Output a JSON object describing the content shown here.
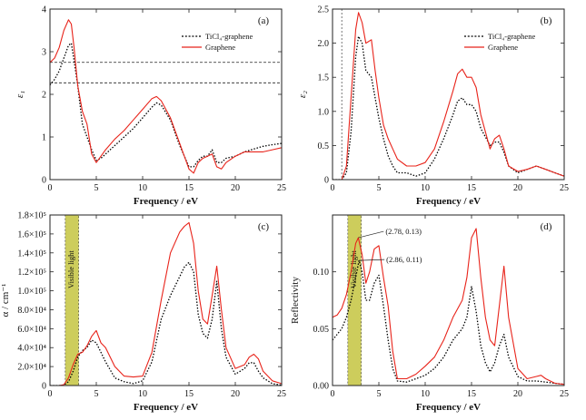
{
  "chart_data": [
    {
      "panel": "(a)",
      "type": "line",
      "xlabel": "Frequency / eV",
      "ylabel": "ε₁",
      "xlim": [
        0,
        25
      ],
      "ylim": [
        0,
        4
      ],
      "xticks": [
        0,
        5,
        10,
        15,
        20,
        25
      ],
      "yticks": [
        0,
        1,
        2,
        3,
        4
      ],
      "xtick_labels": [
        "0",
        "5",
        "10",
        "15",
        "20",
        "25"
      ],
      "ytick_labels": [
        "0",
        "1",
        "2",
        "3",
        "4"
      ],
      "legend_position": "top-right",
      "hlines": [
        2.75,
        2.27
      ],
      "series": [
        {
          "name": "TiCl₄-graphene",
          "color": "#000000",
          "style": "dotted",
          "x": [
            0,
            0.5,
            1,
            1.5,
            2,
            2.3,
            2.6,
            3,
            3.5,
            4,
            4.5,
            5,
            5.5,
            6,
            7,
            8,
            9,
            10,
            11,
            11.5,
            12,
            13,
            14,
            15,
            15.5,
            16,
            16.5,
            17,
            17.5,
            18,
            18.5,
            19,
            20,
            21,
            22,
            23,
            24,
            25
          ],
          "values": [
            2.22,
            2.35,
            2.55,
            2.85,
            3.15,
            3.2,
            2.8,
            2.2,
            1.3,
            1.0,
            0.7,
            0.45,
            0.5,
            0.6,
            0.8,
            1.0,
            1.2,
            1.45,
            1.7,
            1.8,
            1.75,
            1.4,
            0.8,
            0.3,
            0.3,
            0.45,
            0.55,
            0.55,
            0.7,
            0.4,
            0.4,
            0.5,
            0.55,
            0.65,
            0.72,
            0.78,
            0.82,
            0.85
          ]
        },
        {
          "name": "Graphene",
          "color": "#e8231a",
          "style": "solid",
          "x": [
            0,
            0.5,
            1,
            1.5,
            2,
            2.3,
            2.6,
            3,
            3.5,
            4,
            4.5,
            5,
            5.5,
            6,
            7,
            8,
            9,
            10,
            11,
            11.5,
            12,
            13,
            14,
            15,
            15.5,
            16,
            16.5,
            17,
            17.5,
            18,
            18.5,
            19,
            20,
            21,
            22,
            23,
            24,
            25
          ],
          "values": [
            2.75,
            2.85,
            3.1,
            3.5,
            3.75,
            3.65,
            3.1,
            2.2,
            1.6,
            1.3,
            0.6,
            0.4,
            0.55,
            0.7,
            0.95,
            1.15,
            1.4,
            1.65,
            1.9,
            1.95,
            1.85,
            1.45,
            0.85,
            0.25,
            0.15,
            0.4,
            0.5,
            0.55,
            0.6,
            0.3,
            0.25,
            0.4,
            0.55,
            0.65,
            0.65,
            0.65,
            0.7,
            0.75
          ]
        }
      ]
    },
    {
      "panel": "(b)",
      "type": "line",
      "xlabel": "Frequency / eV",
      "ylabel": "ε₂",
      "xlim": [
        0,
        25
      ],
      "ylim": [
        0,
        2.5
      ],
      "xticks": [
        0,
        5,
        10,
        15,
        20,
        25
      ],
      "yticks": [
        0,
        0.5,
        1.0,
        1.5,
        2.0,
        2.5
      ],
      "xtick_labels": [
        "0",
        "5",
        "10",
        "15",
        "20",
        "25"
      ],
      "ytick_labels": [
        "0",
        "0.5",
        "1.0",
        "1.5",
        "2.0",
        "2.5"
      ],
      "legend_position": "top-right",
      "vlines": [
        1.0
      ],
      "series": [
        {
          "name": "TiCl₄-graphene",
          "color": "#000000",
          "style": "dotted",
          "x": [
            0,
            1,
            1.5,
            2,
            2.5,
            2.8,
            3.2,
            3.6,
            4.2,
            4.6,
            5,
            5.5,
            6,
            6.5,
            7,
            8,
            9,
            10,
            11,
            12,
            13,
            13.5,
            14,
            14.5,
            15,
            15.5,
            16,
            17,
            17.5,
            18,
            18.5,
            19,
            20,
            21,
            22,
            23,
            24,
            25
          ],
          "values": [
            0,
            0,
            0.1,
            0.7,
            1.8,
            2.1,
            2.0,
            1.6,
            1.5,
            1.2,
            0.9,
            0.6,
            0.35,
            0.2,
            0.1,
            0.1,
            0.05,
            0.1,
            0.3,
            0.6,
            0.95,
            1.15,
            1.2,
            1.1,
            1.1,
            1.0,
            0.75,
            0.5,
            0.55,
            0.55,
            0.4,
            0.2,
            0.1,
            0.15,
            0.2,
            0.15,
            0.1,
            0.05
          ]
        },
        {
          "name": "Graphene",
          "color": "#e8231a",
          "style": "solid",
          "x": [
            0,
            1,
            1.5,
            2,
            2.5,
            2.8,
            3.2,
            3.6,
            4.2,
            4.6,
            5,
            5.5,
            6,
            6.5,
            7,
            8,
            9,
            10,
            11,
            12,
            13,
            13.5,
            14,
            14.5,
            15,
            15.5,
            16,
            17,
            17.5,
            18,
            18.5,
            19,
            20,
            21,
            22,
            23,
            24,
            25
          ],
          "values": [
            0,
            0,
            0.2,
            1.2,
            2.2,
            2.45,
            2.3,
            2.0,
            2.05,
            1.6,
            1.2,
            0.8,
            0.6,
            0.45,
            0.3,
            0.2,
            0.2,
            0.25,
            0.45,
            0.85,
            1.3,
            1.55,
            1.62,
            1.5,
            1.5,
            1.35,
            0.95,
            0.45,
            0.6,
            0.65,
            0.45,
            0.2,
            0.12,
            0.15,
            0.2,
            0.15,
            0.1,
            0.05
          ]
        }
      ]
    },
    {
      "panel": "(c)",
      "type": "line",
      "xlabel": "Frequency / eV",
      "ylabel": "α / cm⁻¹",
      "xlim": [
        0,
        25
      ],
      "ylim": [
        0,
        180000
      ],
      "xticks": [
        0,
        5,
        10,
        15,
        20,
        25
      ],
      "yticks": [
        0,
        20000,
        40000,
        60000,
        80000,
        100000,
        120000,
        140000,
        160000,
        180000
      ],
      "xtick_labels": [
        "0",
        "5",
        "10",
        "15",
        "20",
        "25"
      ],
      "ytick_labels": [
        "0",
        "2.0×10⁴",
        "4.0×10⁴",
        "6.0×10⁴",
        "8.0×10⁴",
        "1.0×10⁵",
        "1.2×10⁵",
        "1.4×10⁵",
        "1.6×10⁵",
        "1.8×10⁵"
      ],
      "band": {
        "x": [
          1.65,
          3.1
        ],
        "color": "#c8c84a",
        "label": "Visible light"
      },
      "series": [
        {
          "name": "TiCl₄-graphene",
          "color": "#000000",
          "style": "dotted",
          "x": [
            0,
            1,
            1.5,
            2,
            2.5,
            3,
            3.5,
            4,
            4.5,
            5,
            5.5,
            6,
            7,
            8,
            9,
            10,
            11,
            12,
            13,
            14,
            14.5,
            15,
            15.5,
            16,
            16.5,
            17,
            17.5,
            18,
            18.5,
            19,
            20,
            21,
            21.5,
            22,
            22.5,
            23,
            24,
            25
          ],
          "values": [
            0,
            0,
            500,
            4000,
            15000,
            30000,
            37000,
            40000,
            48000,
            45000,
            35000,
            25000,
            8000,
            4000,
            2000,
            5000,
            25000,
            70000,
            95000,
            115000,
            125000,
            130000,
            120000,
            75000,
            55000,
            50000,
            70000,
            110000,
            60000,
            30000,
            12000,
            18000,
            24000,
            24000,
            15000,
            8000,
            2000,
            500
          ]
        },
        {
          "name": "Graphene",
          "color": "#e8231a",
          "style": "solid",
          "x": [
            0,
            1,
            1.5,
            2,
            2.5,
            3,
            3.5,
            4,
            4.5,
            5,
            5.5,
            6,
            7,
            8,
            9,
            10,
            11,
            12,
            13,
            14,
            14.5,
            15,
            15.5,
            16,
            16.5,
            17,
            17.5,
            18,
            18.5,
            19,
            20,
            21,
            21.5,
            22,
            22.5,
            23,
            24,
            25
          ],
          "values": [
            0,
            0,
            1000,
            8000,
            22000,
            33000,
            35000,
            42000,
            52000,
            58000,
            45000,
            40000,
            20000,
            10000,
            9000,
            10000,
            35000,
            90000,
            140000,
            162000,
            168000,
            172000,
            150000,
            100000,
            70000,
            65000,
            95000,
            126000,
            80000,
            40000,
            18000,
            22000,
            30000,
            33000,
            28000,
            15000,
            5000,
            2000
          ]
        }
      ]
    },
    {
      "panel": "(d)",
      "type": "line",
      "xlabel": "Frequency / eV",
      "ylabel": "Reflectivity",
      "xlim": [
        0,
        25
      ],
      "ylim": [
        0,
        0.15
      ],
      "xticks": [
        0,
        5,
        10,
        15,
        20,
        25
      ],
      "yticks": [
        0,
        0.05,
        0.1
      ],
      "xtick_labels": [
        "0",
        "5",
        "10",
        "15",
        "20",
        "25"
      ],
      "ytick_labels": [
        "0.00",
        "0.05",
        "0.10"
      ],
      "band": {
        "x": [
          1.65,
          3.1
        ],
        "color": "#c8c84a",
        "label": "Visible light"
      },
      "annotations": [
        {
          "text": "(2.78, 0.13)",
          "x": 2.78,
          "y": 0.13
        },
        {
          "text": "(2.86, 0.11)",
          "x": 2.86,
          "y": 0.11
        }
      ],
      "series": [
        {
          "name": "TiCl₄-graphene",
          "color": "#000000",
          "style": "dotted",
          "x": [
            0,
            0.5,
            1,
            1.5,
            2,
            2.5,
            2.86,
            3.2,
            3.6,
            4,
            4.5,
            5,
            5.5,
            6,
            6.5,
            7,
            8,
            9,
            10,
            11,
            12,
            13,
            14,
            14.5,
            15,
            15.5,
            16,
            16.5,
            17,
            17.5,
            18,
            18.5,
            19,
            20,
            21,
            22,
            23,
            24,
            25
          ],
          "values": [
            0.04,
            0.045,
            0.05,
            0.06,
            0.075,
            0.095,
            0.11,
            0.1,
            0.075,
            0.075,
            0.09,
            0.097,
            0.07,
            0.04,
            0.015,
            0.004,
            0.003,
            0.006,
            0.009,
            0.015,
            0.025,
            0.04,
            0.05,
            0.06,
            0.087,
            0.065,
            0.035,
            0.02,
            0.012,
            0.02,
            0.035,
            0.045,
            0.025,
            0.008,
            0.004,
            0.004,
            0.003,
            0.002,
            0.001
          ]
        },
        {
          "name": "Graphene",
          "color": "#e8231a",
          "style": "solid",
          "x": [
            0,
            0.5,
            1,
            1.5,
            2,
            2.5,
            2.78,
            3.2,
            3.6,
            4,
            4.5,
            5,
            5.5,
            6,
            6.5,
            7,
            8,
            9,
            10,
            11,
            12,
            13,
            14,
            14.5,
            15,
            15.5,
            16,
            16.5,
            17,
            17.5,
            18,
            18.5,
            19,
            20,
            21,
            22,
            22.5,
            23,
            24,
            25
          ],
          "values": [
            0.06,
            0.062,
            0.068,
            0.08,
            0.1,
            0.125,
            0.13,
            0.115,
            0.09,
            0.1,
            0.12,
            0.123,
            0.095,
            0.07,
            0.03,
            0.006,
            0.006,
            0.01,
            0.017,
            0.025,
            0.04,
            0.06,
            0.075,
            0.095,
            0.13,
            0.138,
            0.095,
            0.06,
            0.04,
            0.035,
            0.07,
            0.105,
            0.06,
            0.015,
            0.006,
            0.008,
            0.009,
            0.006,
            0.002,
            0.001
          ]
        }
      ]
    }
  ]
}
